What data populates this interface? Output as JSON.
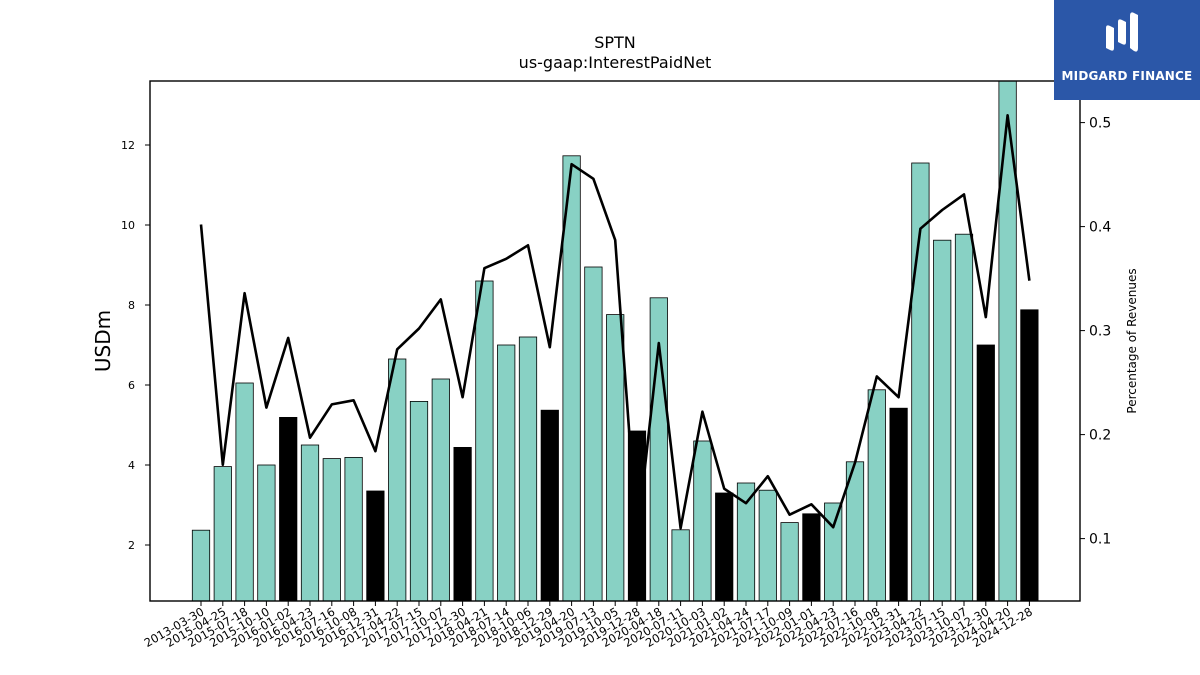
{
  "brand": {
    "name": "MIDGARD FINANCE",
    "bg": "#2b57a8"
  },
  "colors": {
    "bar_normal": "#88d1c4",
    "bar_q4": "#000000",
    "line": "#000000"
  },
  "chart_data": {
    "type": "bar",
    "title": "SPTN",
    "subtitle": "us-gaap:InterestPaidNet",
    "ylabel": "USDm",
    "y2label": "Percentage of Revenues",
    "ylim": [
      0.6,
      13.6
    ],
    "y2lim": [
      0.04,
      0.54
    ],
    "yticks": [
      2,
      4,
      6,
      8,
      10,
      12
    ],
    "y2ticks": [
      0.1,
      0.2,
      0.3,
      0.4,
      0.5
    ],
    "categories": [
      "2013-03-30",
      "2015-04-25",
      "2015-07-18",
      "2015-10-10",
      "2016-01-02",
      "2016-04-23",
      "2016-07-16",
      "2016-10-08",
      "2016-12-31",
      "2017-04-22",
      "2017-07-15",
      "2017-10-07",
      "2017-12-30",
      "2018-04-21",
      "2018-07-14",
      "2018-10-06",
      "2018-12-29",
      "2019-04-20",
      "2019-07-13",
      "2019-10-05",
      "2019-12-28",
      "2020-04-18",
      "2020-07-11",
      "2020-10-03",
      "2021-01-02",
      "2021-04-24",
      "2021-07-17",
      "2021-10-09",
      "2022-01-01",
      "2022-04-23",
      "2022-07-16",
      "2022-10-08",
      "2022-12-31",
      "2023-04-22",
      "2023-07-15",
      "2023-10-07",
      "2023-12-30",
      "2024-04-20",
      "2024-12-28"
    ],
    "series": [
      {
        "type": "bar",
        "values": [
          2.37,
          3.96,
          6.05,
          4.0,
          5.19,
          4.5,
          4.16,
          4.19,
          3.35,
          6.65,
          5.59,
          6.15,
          4.44,
          8.6,
          7.0,
          7.2,
          5.37,
          11.73,
          8.95,
          7.76,
          4.85,
          8.18,
          2.38,
          4.6,
          3.3,
          3.55,
          3.37,
          2.56,
          2.78,
          3.05,
          4.08,
          5.88,
          5.42,
          11.55,
          9.62,
          9.77,
          7.0,
          13.6,
          7.88
        ],
        "highlight": [
          false,
          false,
          false,
          false,
          true,
          false,
          false,
          false,
          true,
          false,
          false,
          false,
          true,
          false,
          false,
          false,
          true,
          false,
          false,
          false,
          true,
          false,
          false,
          false,
          true,
          false,
          false,
          false,
          true,
          false,
          false,
          false,
          true,
          false,
          false,
          false,
          true,
          false,
          true
        ]
      },
      {
        "type": "line",
        "axis": "right",
        "values": [
          0.402,
          0.171,
          0.336,
          0.226,
          0.293,
          0.197,
          0.229,
          0.233,
          0.184,
          0.282,
          0.302,
          0.33,
          0.236,
          0.36,
          0.369,
          0.382,
          0.284,
          0.46,
          0.446,
          0.387,
          0.1,
          0.288,
          0.11,
          0.222,
          0.148,
          0.134,
          0.16,
          0.123,
          0.133,
          0.111,
          0.173,
          0.256,
          0.236,
          0.398,
          0.416,
          0.431,
          0.313,
          0.507,
          0.348
        ]
      }
    ]
  }
}
